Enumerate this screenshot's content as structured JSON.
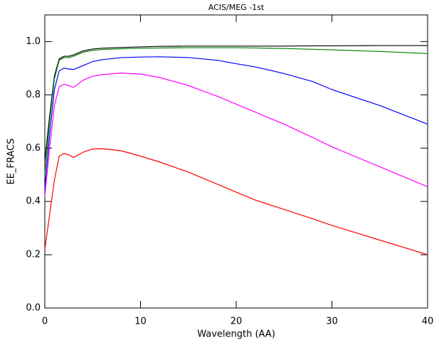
{
  "chart_data": {
    "type": "line",
    "title": "ACIS/MEG -1st",
    "xlabel": "Wavelength (AA)",
    "ylabel": "EE_FRACS",
    "x": [
      0,
      0.5,
      1,
      1.5,
      2,
      2.5,
      3,
      4,
      5,
      6,
      8,
      10,
      12,
      15,
      18,
      20,
      22,
      25,
      28,
      30,
      35,
      40
    ],
    "series": [
      {
        "color": "#000000",
        "values": [
          0.55,
          0.72,
          0.87,
          0.935,
          0.945,
          0.945,
          0.95,
          0.965,
          0.972,
          0.975,
          0.978,
          0.98,
          0.982,
          0.983,
          0.983,
          0.983,
          0.983,
          0.983,
          0.984,
          0.984,
          0.985,
          0.985
        ]
      },
      {
        "color": "#008000",
        "values": [
          0.5,
          0.7,
          0.86,
          0.93,
          0.94,
          0.94,
          0.945,
          0.96,
          0.967,
          0.97,
          0.973,
          0.975,
          0.976,
          0.977,
          0.977,
          0.977,
          0.976,
          0.974,
          0.971,
          0.969,
          0.963,
          0.955
        ]
      },
      {
        "color": "#0000ff",
        "values": [
          0.45,
          0.65,
          0.82,
          0.89,
          0.9,
          0.897,
          0.895,
          0.91,
          0.925,
          0.932,
          0.94,
          0.942,
          0.943,
          0.94,
          0.93,
          0.917,
          0.905,
          0.88,
          0.85,
          0.82,
          0.76,
          0.69
        ]
      },
      {
        "color": "#ff00ff",
        "values": [
          0.42,
          0.6,
          0.76,
          0.83,
          0.84,
          0.835,
          0.828,
          0.855,
          0.87,
          0.876,
          0.882,
          0.878,
          0.865,
          0.835,
          0.795,
          0.765,
          0.735,
          0.69,
          0.64,
          0.605,
          0.53,
          0.455
        ]
      },
      {
        "color": "#ff0000",
        "values": [
          0.22,
          0.35,
          0.48,
          0.57,
          0.58,
          0.575,
          0.565,
          0.585,
          0.597,
          0.598,
          0.59,
          0.57,
          0.548,
          0.51,
          0.465,
          0.435,
          0.405,
          0.37,
          0.335,
          0.31,
          0.255,
          0.2
        ]
      }
    ],
    "xlim": [
      0,
      40
    ],
    "xticks": [
      0,
      10,
      20,
      30,
      40
    ],
    "ylim": [
      0,
      1.1
    ],
    "yticks": [
      {
        "value": 0,
        "label": "0.0"
      },
      0.2,
      0.4,
      0.6,
      0.8,
      {
        "value": 1,
        "label": "1.0"
      }
    ]
  }
}
